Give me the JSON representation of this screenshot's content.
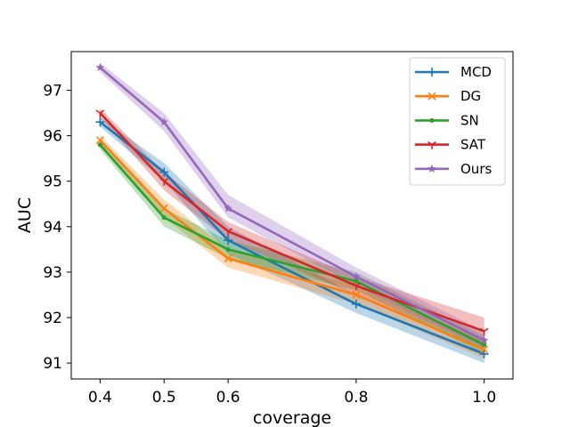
{
  "chart_data": {
    "type": "line",
    "title": "",
    "xlabel": "coverage",
    "ylabel": "AUC",
    "categories": [
      "0.4",
      "0.5",
      "0.6",
      "0.8",
      "1.0"
    ],
    "yticks": [
      "91",
      "92",
      "93",
      "94",
      "95",
      "96",
      "97"
    ],
    "ylim": [
      90.65,
      97.85
    ],
    "grid": false,
    "legend_position": "top-right",
    "series": [
      {
        "name": "MCD",
        "color": "#1f77b4",
        "marker": "plus",
        "values": [
          96.3,
          95.2,
          93.7,
          92.3,
          91.2
        ],
        "lower": [
          96.2,
          95.0,
          93.4,
          92.1,
          91.0
        ],
        "upper": [
          96.4,
          95.4,
          94.0,
          92.5,
          91.4
        ]
      },
      {
        "name": "DG",
        "color": "#ff7f0e",
        "marker": "x",
        "values": [
          95.9,
          94.4,
          93.3,
          92.5,
          91.3
        ],
        "lower": [
          95.8,
          94.2,
          93.1,
          92.3,
          91.1
        ],
        "upper": [
          96.0,
          94.6,
          93.5,
          92.7,
          91.5
        ]
      },
      {
        "name": "SN",
        "color": "#2ca02c",
        "marker": "dot",
        "values": [
          95.8,
          94.2,
          93.5,
          92.8,
          91.4
        ],
        "lower": [
          95.7,
          94.0,
          93.3,
          92.6,
          91.2
        ],
        "upper": [
          95.9,
          94.4,
          93.7,
          93.0,
          91.6
        ]
      },
      {
        "name": "SAT",
        "color": "#d62728",
        "marker": "tri",
        "values": [
          96.5,
          95.0,
          93.9,
          92.7,
          91.7
        ],
        "lower": [
          96.4,
          94.8,
          93.7,
          92.5,
          91.4
        ],
        "upper": [
          96.6,
          95.2,
          94.1,
          92.9,
          92.0
        ]
      },
      {
        "name": "Ours",
        "color": "#9467bd",
        "marker": "star",
        "values": [
          97.5,
          96.3,
          94.4,
          92.9,
          91.5
        ],
        "lower": [
          97.4,
          96.1,
          94.2,
          92.7,
          91.3
        ],
        "upper": [
          97.6,
          96.5,
          94.7,
          93.1,
          91.7
        ]
      }
    ]
  }
}
